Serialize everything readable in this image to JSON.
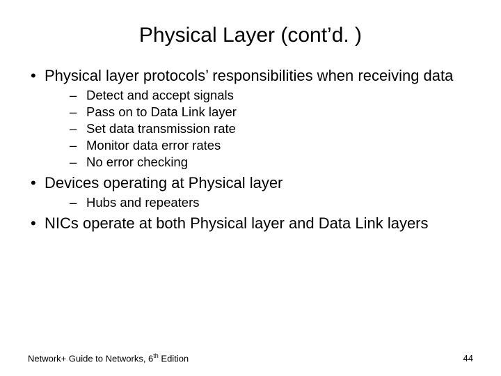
{
  "title": "Physical Layer (cont’d. )",
  "bullets": {
    "b1": "Physical layer protocols’ responsibilities when receiving data",
    "b1_sub": {
      "s1": "Detect and accept signals",
      "s2": "Pass on to Data Link layer",
      "s3": "Set data transmission rate",
      "s4": "Monitor data error rates",
      "s5": "No error checking"
    },
    "b2": "Devices operating at Physical layer",
    "b2_sub": {
      "s1": "Hubs and repeaters"
    },
    "b3": "NICs operate at both Physical layer and Data Link layers"
  },
  "footer": {
    "left_pre": "Network+ Guide to Networks, 6",
    "left_sup": "th",
    "left_post": " Edition",
    "page": "44"
  }
}
